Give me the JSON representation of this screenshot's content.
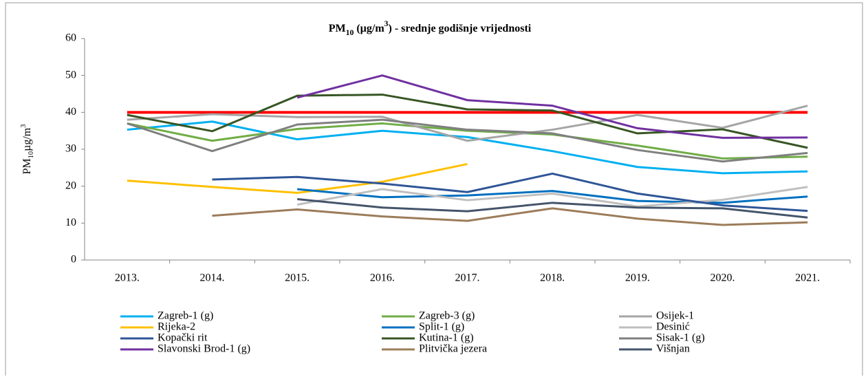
{
  "chart_data": {
    "type": "line",
    "title": [
      {
        "text": "PM"
      },
      {
        "text": "10",
        "shift": "sub"
      },
      {
        "text": " (µg/m"
      },
      {
        "text": "3",
        "shift": "sup"
      },
      {
        "text": ") - srednje godišnje vrijednosti"
      }
    ],
    "y_label": [
      {
        "text": "PM"
      },
      {
        "text": "10",
        "shift": "sub"
      },
      {
        "text": "µg/m"
      },
      {
        "text": "3",
        "shift": "sup"
      }
    ],
    "categories": [
      "2013.",
      "2014.",
      "2015.",
      "2016.",
      "2017.",
      "2018.",
      "2019.",
      "2020.",
      "2021."
    ],
    "ylim": [
      0,
      60
    ],
    "yticks": [
      0,
      10,
      20,
      30,
      40,
      50,
      60
    ],
    "reference_line": {
      "value": 40,
      "color": "#ff0000"
    },
    "series": [
      {
        "name": "Zagreb-1 (g)",
        "color": "#00b0f0",
        "values": [
          35.3,
          37.5,
          32.7,
          35,
          33.3,
          29.5,
          25.2,
          23.5,
          24
        ]
      },
      {
        "name": "Zagreb-3 (g)",
        "color": "#70ad47",
        "values": [
          37,
          32.3,
          35.5,
          37,
          35,
          34,
          31,
          27.5,
          28
        ]
      },
      {
        "name": "Osijek-1",
        "color": "#a5a5a5",
        "values": [
          38,
          39.5,
          38.7,
          38.8,
          32.3,
          35.3,
          39.3,
          35.8,
          41.8
        ]
      },
      {
        "name": "Rijeka-2",
        "color": "#ffc000",
        "values": [
          21.5,
          19.8,
          18.2,
          21.2,
          26,
          null,
          null,
          null,
          null
        ]
      },
      {
        "name": "Split-1 (g)",
        "color": "#0070c0",
        "values": [
          null,
          null,
          19.2,
          17,
          17.5,
          18.7,
          16,
          15.5,
          17.2
        ]
      },
      {
        "name": "Desinić",
        "color": "#bfbfbf",
        "values": [
          null,
          null,
          15,
          19.2,
          16.2,
          18,
          14.5,
          16.3,
          19.8
        ]
      },
      {
        "name": "Kopački rit",
        "color": "#2f5597",
        "values": [
          null,
          21.8,
          22.5,
          20.7,
          18.4,
          23.4,
          18,
          14.8,
          13.3
        ]
      },
      {
        "name": "Kutina-1 (g)",
        "color": "#375623",
        "values": [
          39.3,
          34.9,
          44.5,
          44.8,
          40.8,
          40.5,
          34.3,
          35.4,
          30.4
        ]
      },
      {
        "name": "Sisak-1 (g)",
        "color": "#7f7f7f",
        "values": [
          37,
          29.5,
          36.7,
          38,
          35.3,
          34.3,
          29.8,
          26.7,
          29
        ]
      },
      {
        "name": "Slavonski Brod-1 (g)",
        "color": "#7030a0",
        "values": [
          null,
          null,
          44,
          50,
          43.3,
          41.8,
          35.7,
          33.1,
          33.2
        ]
      },
      {
        "name": "Plitvička jezera",
        "color": "#9c7c5a",
        "values": [
          null,
          12,
          13.7,
          11.8,
          10.6,
          14,
          11.2,
          9.5,
          10.2
        ]
      },
      {
        "name": "Višnjan",
        "color": "#44546a",
        "values": [
          null,
          null,
          16.5,
          14.2,
          13.2,
          15.5,
          14.2,
          14,
          11.5
        ]
      }
    ]
  }
}
